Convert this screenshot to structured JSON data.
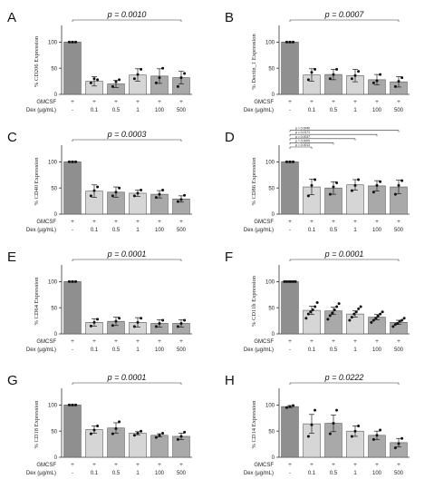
{
  "figure": {
    "colors": {
      "axis": "#333333",
      "bar_dark": "#8f8f8f",
      "bar_light": "#d6d6d6",
      "bar_mid": "#a9a9a9",
      "dot": "#111111"
    }
  },
  "chart_data": [
    {
      "panel": "A",
      "type": "bar",
      "ylabel": "% CD206 Expression",
      "pvalue": "p = 0.0010",
      "ylim": [
        0,
        125
      ],
      "yticks": [
        0,
        50,
        100
      ],
      "row_labels": [
        "GMCSF",
        "Dex (μg/mL)"
      ],
      "categories": [
        "-",
        "0.1",
        "0.5",
        "1",
        "100",
        "500"
      ],
      "gmcsf": [
        "+",
        "+",
        "+",
        "+",
        "+",
        "+"
      ],
      "values": [
        100,
        25,
        20,
        37,
        35,
        32
      ],
      "errors": [
        1,
        9,
        7,
        12,
        14,
        12
      ],
      "points": [
        [
          100,
          100,
          100
        ],
        [
          22,
          30,
          28
        ],
        [
          15,
          24,
          28
        ],
        [
          30,
          38,
          48
        ],
        [
          22,
          32,
          50
        ],
        [
          15,
          32,
          40
        ]
      ],
      "brackets": [
        {
          "from": 0,
          "to": 5,
          "label": "p = 0.0010"
        }
      ]
    },
    {
      "panel": "B",
      "type": "bar",
      "ylabel": "% Dectin_1 Expression",
      "pvalue": "p = 0.0007",
      "ylim": [
        0,
        125
      ],
      "yticks": [
        0,
        50,
        100
      ],
      "row_labels": [
        "GMCSF",
        "Dex (μg/mL)"
      ],
      "categories": [
        "-",
        "0.1",
        "0.5",
        "1",
        "100",
        "500"
      ],
      "gmcsf": [
        "+",
        "+",
        "+",
        "+",
        "+",
        "+"
      ],
      "values": [
        100,
        37,
        38,
        36,
        28,
        24
      ],
      "errors": [
        1,
        12,
        10,
        12,
        10,
        10
      ],
      "points": [
        [
          100,
          100,
          100
        ],
        [
          28,
          42,
          48
        ],
        [
          30,
          38,
          48
        ],
        [
          30,
          36,
          44
        ],
        [
          22,
          26,
          38
        ],
        [
          15,
          25,
          32
        ]
      ],
      "brackets": [
        {
          "from": 0,
          "to": 5,
          "label": "p = 0.0007"
        }
      ]
    },
    {
      "panel": "C",
      "type": "bar",
      "ylabel": "% CD40 Expression",
      "pvalue": "p = 0.0003",
      "ylim": [
        0,
        125
      ],
      "yticks": [
        0,
        50,
        100
      ],
      "row_labels": [
        "GMCSF",
        "Dex (μg/mL)"
      ],
      "categories": [
        "-",
        "0.1",
        "0.5",
        "1",
        "100",
        "500"
      ],
      "gmcsf": [
        "+",
        "+",
        "+",
        "+",
        "+",
        "+"
      ],
      "values": [
        100,
        44,
        42,
        40,
        38,
        29
      ],
      "errors": [
        1,
        12,
        10,
        6,
        7,
        6
      ],
      "points": [
        [
          100,
          100,
          100
        ],
        [
          35,
          45,
          52
        ],
        [
          35,
          42,
          50
        ],
        [
          35,
          40,
          46
        ],
        [
          32,
          38,
          46
        ],
        [
          24,
          28,
          36
        ]
      ],
      "brackets": [
        {
          "from": 0,
          "to": 5,
          "label": "p = 0.0003"
        }
      ]
    },
    {
      "panel": "D",
      "type": "bar",
      "ylabel": "% CD86 Expression",
      "pvalue": "",
      "ylim": [
        0,
        125
      ],
      "yticks": [
        0,
        50,
        100
      ],
      "row_labels": [
        "GMCSF",
        "Dex (μg/mL)"
      ],
      "categories": [
        "-",
        "0.1",
        "0.5",
        "1",
        "100",
        "500"
      ],
      "gmcsf": [
        "+",
        "+",
        "+",
        "+",
        "+",
        "+"
      ],
      "values": [
        100,
        52,
        50,
        56,
        54,
        52
      ],
      "errors": [
        1,
        15,
        12,
        10,
        10,
        13
      ],
      "points": [
        [
          100,
          100,
          100
        ],
        [
          35,
          55,
          66
        ],
        [
          38,
          52,
          60
        ],
        [
          45,
          55,
          66
        ],
        [
          42,
          55,
          62
        ],
        [
          38,
          55,
          64
        ]
      ],
      "brackets": [
        {
          "from": 0,
          "to": 1,
          "label": "p = 0.0013"
        },
        {
          "from": 0,
          "to": 2,
          "label": "p = 0.0005"
        },
        {
          "from": 0,
          "to": 3,
          "label": "p = 0.0037"
        },
        {
          "from": 0,
          "to": 4,
          "label": "p = 0.0171"
        },
        {
          "from": 0,
          "to": 5,
          "label": "p = 0.0040"
        }
      ]
    },
    {
      "panel": "E",
      "type": "bar",
      "ylabel": "% CD64 Expression",
      "pvalue": "p = 0.0001",
      "ylim": [
        0,
        125
      ],
      "yticks": [
        0,
        50,
        100
      ],
      "row_labels": [
        "GMCSF",
        "Dex (μg/mL)"
      ],
      "categories": [
        "-",
        "0.1",
        "0.5",
        "1",
        "100",
        "500"
      ],
      "gmcsf": [
        "+",
        "+",
        "+",
        "+",
        "+",
        "+"
      ],
      "values": [
        100,
        22,
        24,
        22,
        20,
        20
      ],
      "errors": [
        1,
        7,
        8,
        9,
        7,
        7
      ],
      "points": [
        [
          100,
          100,
          100
        ],
        [
          15,
          22,
          28
        ],
        [
          16,
          24,
          30
        ],
        [
          14,
          22,
          30
        ],
        [
          14,
          20,
          26
        ],
        [
          14,
          20,
          26
        ]
      ],
      "brackets": [
        {
          "from": 0,
          "to": 5,
          "label": "p = 0.0001"
        }
      ]
    },
    {
      "panel": "F",
      "type": "bar",
      "ylabel": "% CD11b Expression",
      "pvalue": "p = 0.0001",
      "ylim": [
        0,
        125
      ],
      "yticks": [
        0,
        50,
        100
      ],
      "row_labels": [
        "GMCSF",
        "Dex (μg/mL)"
      ],
      "categories": [
        "-",
        "0.1",
        "0.5",
        "1",
        "100",
        "500"
      ],
      "gmcsf": [
        "+",
        "+",
        "+",
        "+",
        "+",
        "+"
      ],
      "values": [
        100,
        45,
        44,
        38,
        32,
        22
      ],
      "errors": [
        1,
        8,
        7,
        6,
        5,
        4
      ],
      "points": [
        [
          100,
          100,
          100,
          100,
          100,
          100
        ],
        [
          30,
          38,
          42,
          46,
          52,
          60
        ],
        [
          28,
          35,
          40,
          46,
          52,
          58
        ],
        [
          26,
          32,
          38,
          42,
          48,
          52
        ],
        [
          22,
          26,
          30,
          34,
          38,
          42
        ],
        [
          14,
          18,
          20,
          24,
          26,
          30
        ]
      ],
      "brackets": [
        {
          "from": 0,
          "to": 5,
          "label": "p = 0.0001"
        }
      ]
    },
    {
      "panel": "G",
      "type": "bar",
      "ylabel": "% CD18 Expression",
      "pvalue": "p = 0.0001",
      "ylim": [
        0,
        125
      ],
      "yticks": [
        0,
        50,
        100
      ],
      "row_labels": [
        "GMCSF",
        "Dex (μg/mL)"
      ],
      "categories": [
        "-",
        "0.1",
        "0.5",
        "1",
        "100",
        "500"
      ],
      "gmcsf": [
        "+",
        "+",
        "+",
        "+",
        "+",
        "+"
      ],
      "values": [
        100,
        53,
        56,
        46,
        42,
        40
      ],
      "errors": [
        1,
        7,
        10,
        3,
        3,
        6
      ],
      "points": [
        [
          100,
          100,
          100
        ],
        [
          45,
          52,
          60
        ],
        [
          45,
          55,
          68
        ],
        [
          42,
          46,
          50
        ],
        [
          38,
          42,
          46
        ],
        [
          34,
          40,
          48
        ]
      ],
      "brackets": [
        {
          "from": 0,
          "to": 5,
          "label": "p = 0.0001"
        }
      ]
    },
    {
      "panel": "H",
      "type": "bar",
      "ylabel": "% CD14 Expression",
      "pvalue": "p = 0.0222",
      "ylim": [
        0,
        125
      ],
      "yticks": [
        0,
        50,
        100
      ],
      "row_labels": [
        "GMCSF",
        "Dex (μg/mL)"
      ],
      "categories": [
        "-",
        "0.1",
        "0.5",
        "1",
        "100",
        "500"
      ],
      "gmcsf": [
        "+",
        "+",
        "+",
        "+",
        "+",
        "+"
      ],
      "values": [
        97,
        64,
        65,
        50,
        42,
        28
      ],
      "errors": [
        2,
        18,
        16,
        10,
        8,
        8
      ],
      "points": [
        [
          95,
          97,
          99
        ],
        [
          40,
          62,
          90
        ],
        [
          45,
          65,
          90
        ],
        [
          40,
          50,
          60
        ],
        [
          34,
          42,
          52
        ],
        [
          18,
          26,
          36
        ]
      ],
      "brackets": [
        {
          "from": 0,
          "to": 5,
          "label": "p = 0.0222"
        }
      ]
    }
  ]
}
